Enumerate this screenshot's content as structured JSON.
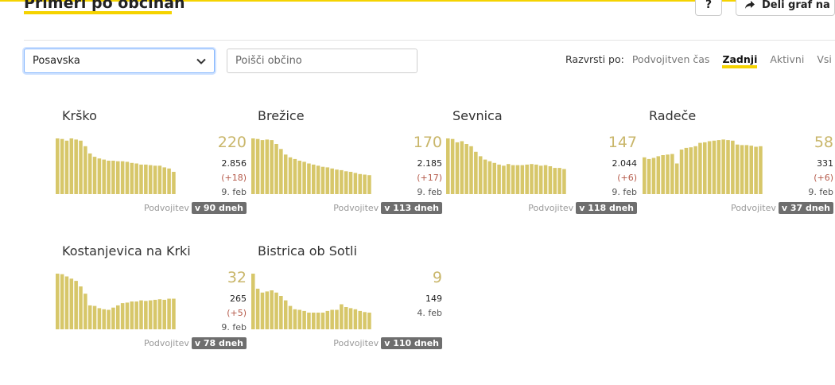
{
  "header": {
    "title": "Primeri po občinah",
    "help_label": "?",
    "share_label": "Deli graf na"
  },
  "filters": {
    "region_selected": "Posavska",
    "search_placeholder": "Poišči občino"
  },
  "sort": {
    "label": "Razvrsti po:",
    "options": [
      "Podvojitven čas",
      "Zadnji",
      "Aktivni",
      "Vsi"
    ],
    "active": "Zadnji"
  },
  "colors": {
    "accent": "#f5d300",
    "bar": "#d7c76a",
    "cases_number": "#c9b66a",
    "delta": "#b55a4a",
    "badge_bg": "#6e6e6e"
  },
  "doubling_label": "Podvojitev",
  "municipalities": [
    {
      "name": "Krško",
      "cases": "220",
      "total": "2.856",
      "delta": "(+18)",
      "date": "9. feb",
      "doubling": "v 90 dneh",
      "bars": [
        1.0,
        0.99,
        0.96,
        1.0,
        0.98,
        0.96,
        0.86,
        0.73,
        0.67,
        0.64,
        0.62,
        0.6,
        0.6,
        0.59,
        0.59,
        0.58,
        0.56,
        0.55,
        0.53,
        0.53,
        0.52,
        0.51,
        0.51,
        0.48,
        0.46,
        0.4
      ]
    },
    {
      "name": "Brežice",
      "cases": "170",
      "total": "2.185",
      "delta": "(+17)",
      "date": "9. feb",
      "doubling": "v 113 dneh",
      "bars": [
        1.0,
        0.99,
        0.97,
        0.98,
        0.97,
        0.9,
        0.81,
        0.71,
        0.66,
        0.63,
        0.6,
        0.58,
        0.55,
        0.53,
        0.51,
        0.49,
        0.48,
        0.46,
        0.44,
        0.43,
        0.41,
        0.4,
        0.38,
        0.36,
        0.35,
        0.34
      ]
    },
    {
      "name": "Sevnica",
      "cases": "147",
      "total": "2.044",
      "delta": "(+6)",
      "date": "9. feb",
      "doubling": "v 118 dneh",
      "bars": [
        1.0,
        0.99,
        0.93,
        0.95,
        0.9,
        0.86,
        0.76,
        0.68,
        0.62,
        0.59,
        0.56,
        0.53,
        0.51,
        0.54,
        0.52,
        0.52,
        0.52,
        0.53,
        0.54,
        0.53,
        0.51,
        0.52,
        0.5,
        0.47,
        0.47,
        0.45
      ]
    },
    {
      "name": "Radeče",
      "cases": "58",
      "total": "331",
      "delta": "(+6)",
      "date": "9. feb",
      "doubling": "v 37 dneh",
      "bars": [
        0.66,
        0.63,
        0.65,
        0.68,
        0.7,
        0.71,
        0.72,
        0.55,
        0.8,
        0.83,
        0.84,
        0.86,
        0.92,
        0.93,
        0.95,
        0.96,
        0.97,
        0.98,
        0.97,
        0.96,
        0.89,
        0.88,
        0.88,
        0.87,
        0.85,
        0.86
      ]
    },
    {
      "name": "Kostanjevica na Krki",
      "cases": "32",
      "total": "265",
      "delta": "(+5)",
      "date": "9. feb",
      "doubling": "v 78 dneh",
      "bars": [
        1.0,
        0.99,
        0.95,
        0.91,
        0.87,
        0.77,
        0.64,
        0.43,
        0.42,
        0.38,
        0.36,
        0.35,
        0.39,
        0.43,
        0.47,
        0.48,
        0.5,
        0.5,
        0.52,
        0.51,
        0.52,
        0.53,
        0.54,
        0.53,
        0.55,
        0.55
      ]
    },
    {
      "name": "Bistrica ob Sotli",
      "cases": "9",
      "total": "149",
      "delta": "",
      "date": "4. feb",
      "doubling": "v 110 dneh",
      "bars": [
        1.0,
        0.73,
        0.66,
        0.68,
        0.7,
        0.66,
        0.6,
        0.52,
        0.42,
        0.36,
        0.35,
        0.33,
        0.3,
        0.3,
        0.3,
        0.3,
        0.33,
        0.35,
        0.35,
        0.45,
        0.4,
        0.38,
        0.36,
        0.33,
        0.31,
        0.3
      ]
    }
  ]
}
